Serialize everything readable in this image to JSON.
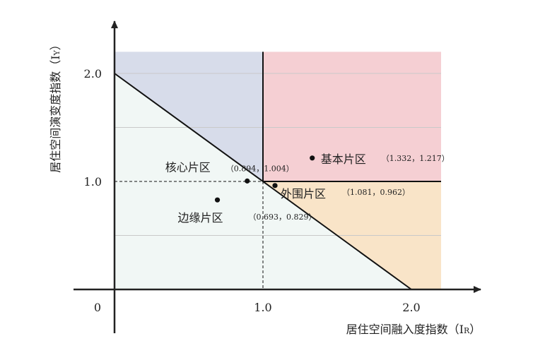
{
  "chart_data": {
    "type": "scatter",
    "title": "",
    "xlabel": "居住空间融入度指数（I",
    "xlabel_sub": "R",
    "xlabel_close": "）",
    "ylabel": "居住空间演变度指数（I",
    "ylabel_sub": "Y",
    "ylabel_close": "）",
    "xlim": [
      0,
      2.2
    ],
    "ylim": [
      0,
      2.2
    ],
    "origin_label": "0",
    "x_ticks": [
      {
        "value": 1.0,
        "label": "1.0"
      },
      {
        "value": 2.0,
        "label": "2.0"
      }
    ],
    "y_ticks": [
      {
        "value": 1.0,
        "label": "1.0"
      },
      {
        "value": 2.0,
        "label": "2.0"
      }
    ],
    "gridlines_y": [
      0.5,
      1.5,
      2.0
    ],
    "regions": {
      "top_left_color": "#d7dcea",
      "top_right_color": "#f5cfd3",
      "bottom_right_color": "#f9e4c8",
      "lower_left_color": "#f1f7f5"
    },
    "diagonal": {
      "from": [
        0,
        2.0
      ],
      "to": [
        2.0,
        0
      ]
    },
    "points": [
      {
        "name": "核心片区",
        "coords": "（0.894，1.004）",
        "x": 0.894,
        "y": 1.004
      },
      {
        "name": "基本片区",
        "coords": "（1.332，1.217）",
        "x": 1.332,
        "y": 1.217
      },
      {
        "name": "外围片区",
        "coords": "（1.081，0.962）",
        "x": 1.081,
        "y": 0.962
      },
      {
        "name": "边缘片区",
        "coords": "（0.693，0.829）",
        "x": 0.693,
        "y": 0.829
      }
    ],
    "grid": true,
    "legend": "none"
  }
}
